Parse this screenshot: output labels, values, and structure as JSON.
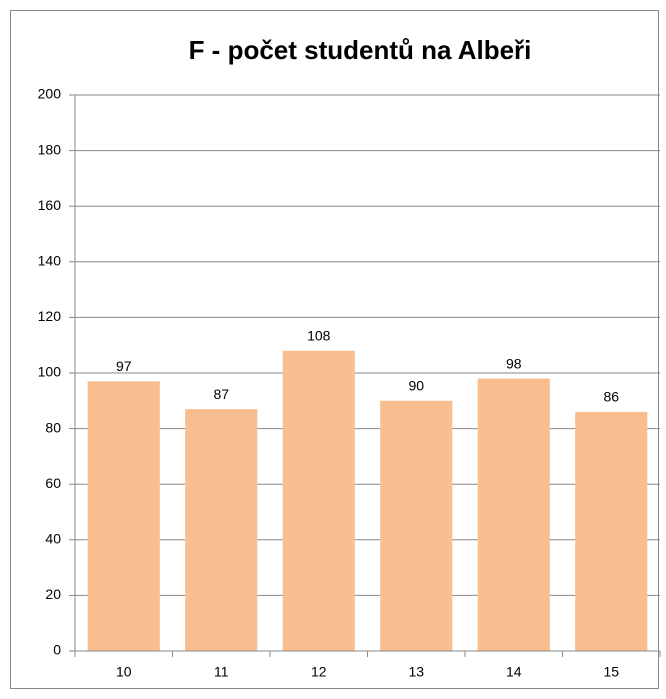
{
  "chart_data": {
    "type": "bar",
    "title": "F - počet studentů na Albeři",
    "categories": [
      "10",
      "11",
      "12",
      "13",
      "14",
      "15"
    ],
    "values": [
      97,
      87,
      108,
      90,
      98,
      86
    ],
    "color": "#f9be8f",
    "ylim": [
      0,
      200
    ],
    "yticks": [
      0,
      20,
      40,
      60,
      80,
      100,
      120,
      140,
      160,
      180,
      200
    ],
    "grid": true,
    "data_labels": true
  }
}
